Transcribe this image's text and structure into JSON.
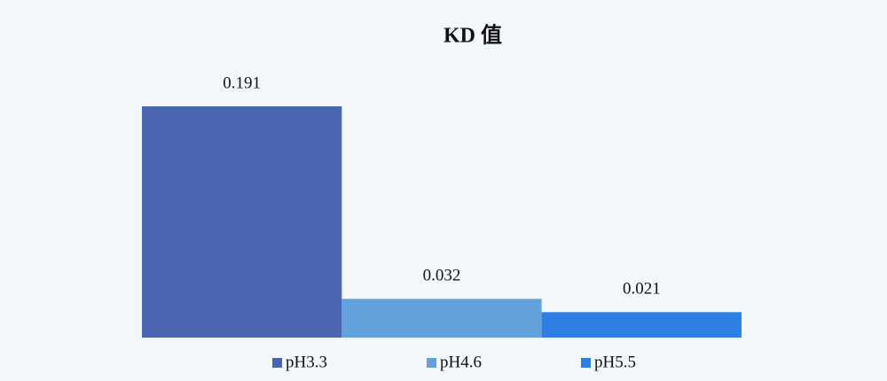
{
  "chart_data": {
    "type": "bar",
    "title": "KD 值",
    "categories": [
      null
    ],
    "series": [
      {
        "name": "pH3.3",
        "color": "#4a64b2",
        "values": [
          0.191
        ]
      },
      {
        "name": "pH4.6",
        "color": "#62a1dc",
        "values": [
          0.032
        ]
      },
      {
        "name": "pH5.5",
        "color": "#2d7fe3",
        "values": [
          0.021
        ]
      }
    ],
    "legend": "bottom"
  }
}
